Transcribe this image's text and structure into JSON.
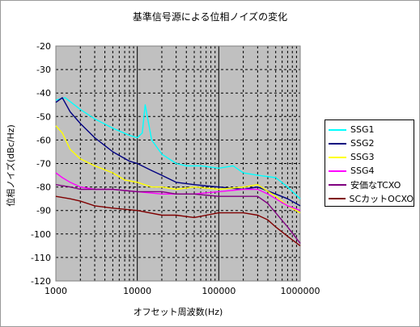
{
  "chart_data": {
    "type": "line",
    "title": "基準信号源による位相ノイズの変化",
    "xlabel": "オフセット周波数(Hz)",
    "ylabel": "位相ノイズ(dBc/Hz)",
    "x_scale": "log",
    "xlim": [
      1000,
      1000000
    ],
    "ylim": [
      -120,
      -20
    ],
    "x_ticks": [
      "1000",
      "10000",
      "100000",
      "1000000"
    ],
    "y_ticks": [
      "-20",
      "-30",
      "-40",
      "-50",
      "-60",
      "-70",
      "-80",
      "-90",
      "-100",
      "-110",
      "-120"
    ],
    "grid": true,
    "plot_background": "#c0c0c0",
    "legend_position": "right",
    "series": [
      {
        "name": "SSG1",
        "color": "#00ffff",
        "x": [
          1000,
          1300,
          2000,
          3000,
          5000,
          8000,
          10000,
          11500,
          12500,
          15000,
          20000,
          30000,
          40000,
          60000,
          100000,
          150000,
          200000,
          300000,
          500000,
          700000,
          1000000
        ],
        "y": [
          -43,
          -42,
          -47,
          -51,
          -55,
          -58,
          -59,
          -57,
          -45,
          -60,
          -66,
          -70,
          -71,
          -71,
          -72,
          -71,
          -74,
          -75,
          -76,
          -80,
          -85
        ]
      },
      {
        "name": "SSG2",
        "color": "#000080",
        "x": [
          1000,
          1200,
          1500,
          2000,
          3000,
          5000,
          8000,
          10000,
          15000,
          20000,
          30000,
          50000,
          100000,
          200000,
          300000,
          500000,
          700000,
          1000000
        ],
        "y": [
          -44,
          -42,
          -48,
          -53,
          -59,
          -65,
          -69,
          -70,
          -73,
          -75,
          -78,
          -79,
          -80,
          -81,
          -80,
          -83,
          -85,
          -88
        ]
      },
      {
        "name": "SSG3",
        "color": "#ffff00",
        "x": [
          1000,
          1200,
          1500,
          2000,
          3000,
          5000,
          7000,
          10000,
          15000,
          20000,
          30000,
          50000,
          100000,
          200000,
          300000,
          500000,
          700000,
          1000000
        ],
        "y": [
          -54,
          -57,
          -64,
          -68,
          -71,
          -74,
          -77,
          -78,
          -80,
          -80,
          -81,
          -80,
          -81,
          -80,
          -79,
          -84,
          -88,
          -91
        ]
      },
      {
        "name": "SSG4",
        "color": "#ff00ff",
        "x": [
          1000,
          1200,
          1500,
          2000,
          3000,
          5000,
          10000,
          20000,
          30000,
          50000,
          100000,
          200000,
          300000,
          400000,
          500000,
          700000,
          1000000
        ],
        "y": [
          -74,
          -76,
          -78,
          -80,
          -81,
          -81,
          -82,
          -83,
          -83,
          -83,
          -82,
          -81,
          -81,
          -83,
          -85,
          -88,
          -90
        ]
      },
      {
        "name": "安価なTCXO",
        "color": "#800080",
        "x": [
          1000,
          1500,
          2000,
          3000,
          5000,
          10000,
          20000,
          30000,
          50000,
          100000,
          200000,
          300000,
          400000,
          500000,
          700000,
          1000000
        ],
        "y": [
          -79,
          -80,
          -81,
          -81,
          -81,
          -82,
          -82,
          -83,
          -83,
          -84,
          -84,
          -84,
          -87,
          -91,
          -97,
          -104
        ]
      },
      {
        "name": "SCカットOCXO",
        "color": "#800000",
        "x": [
          1000,
          1500,
          2000,
          3000,
          5000,
          10000,
          20000,
          30000,
          50000,
          100000,
          200000,
          300000,
          400000,
          500000,
          700000,
          1000000
        ],
        "y": [
          -84,
          -85,
          -86,
          -88,
          -89,
          -90,
          -92,
          -92,
          -93,
          -91,
          -91,
          -92,
          -94,
          -97,
          -101,
          -105
        ]
      }
    ]
  }
}
